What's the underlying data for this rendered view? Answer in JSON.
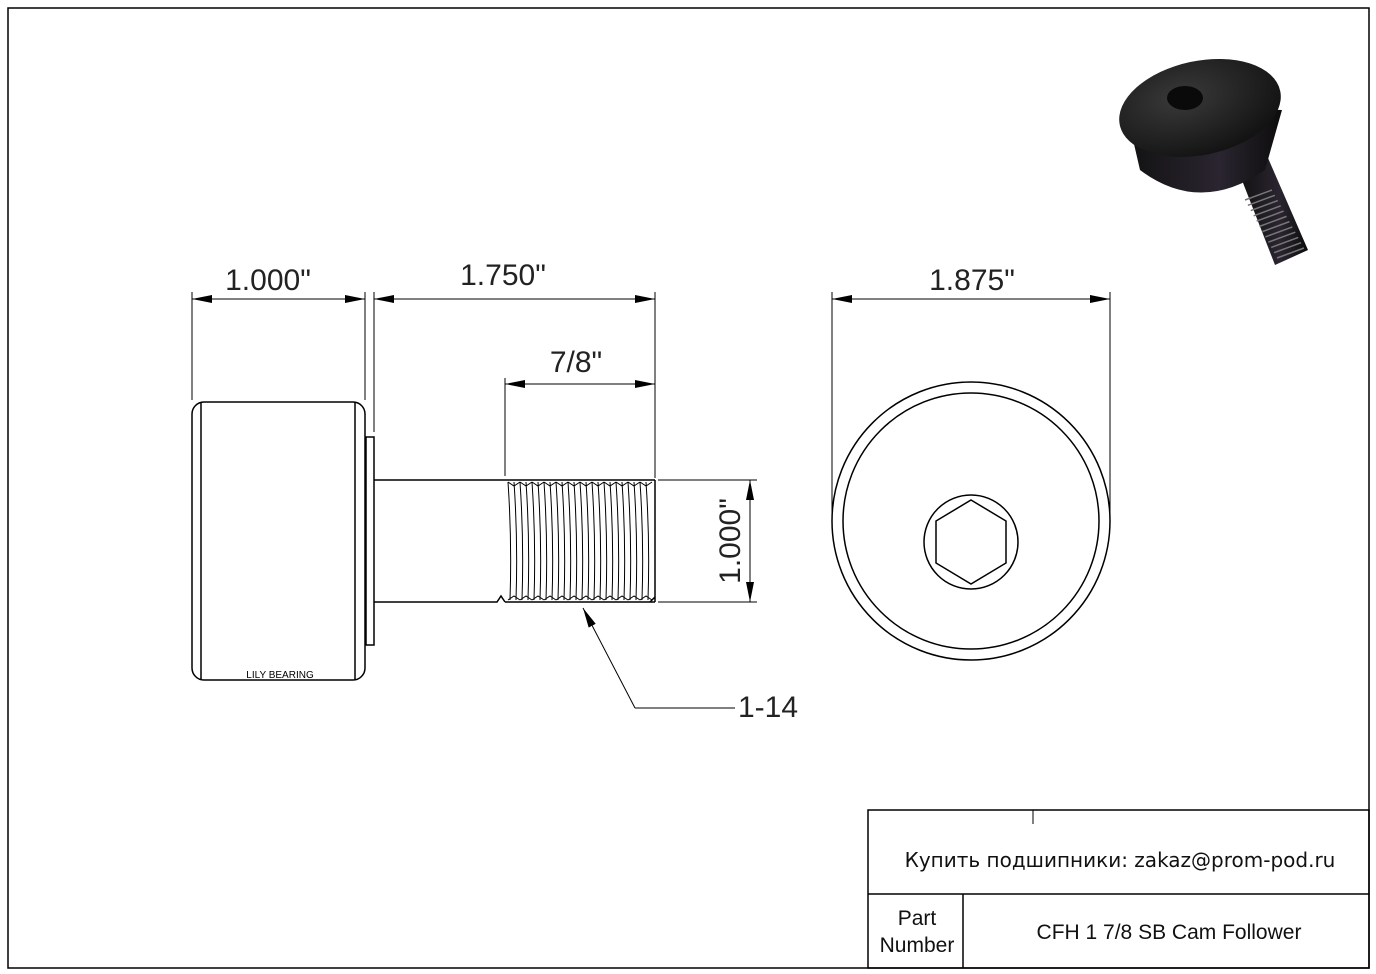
{
  "drawing": {
    "dimensions": {
      "roller_width": "1.000\"",
      "stud_length": "1.750\"",
      "thread_length": "7/8\"",
      "stud_diameter": "1.000\"",
      "roller_diameter": "1.875\"",
      "thread_spec": "1-14"
    },
    "roller_marking": "LILY BEARING"
  },
  "title_block": {
    "contact": "Купить подшипники: zakaz@prom-pod.ru",
    "part_number_label_line1": "Part",
    "part_number_label_line2": "Number",
    "part_number": "CFH 1 7/8 SB Cam Follower"
  },
  "colors": {
    "line": "#000000",
    "product_render": "#1a1a1a"
  }
}
